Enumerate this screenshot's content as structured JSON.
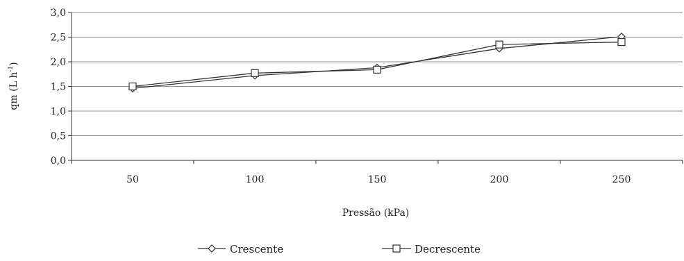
{
  "chart_data": {
    "type": "line",
    "x": [
      50,
      100,
      150,
      200,
      250
    ],
    "categories": [
      "50",
      "100",
      "150",
      "200",
      "250"
    ],
    "series": [
      {
        "name": "Crescente",
        "values": [
          1.46,
          1.72,
          1.88,
          2.27,
          2.51
        ],
        "marker": "diamond",
        "color": "#333333"
      },
      {
        "name": "Decrescente",
        "values": [
          1.5,
          1.77,
          1.84,
          2.35,
          2.4
        ],
        "marker": "square",
        "color": "#333333"
      }
    ],
    "xlabel": "Pressão (kPa)",
    "ylabel_main": "qm (L h",
    "ylabel_sup": "-1",
    "ylabel_close": ")",
    "ylim": [
      0,
      3
    ],
    "yticks": [
      "0,0",
      "0,5",
      "1,0",
      "1,5",
      "2,0",
      "2,5",
      "3,0"
    ],
    "grid": true,
    "legend": "bottom"
  }
}
